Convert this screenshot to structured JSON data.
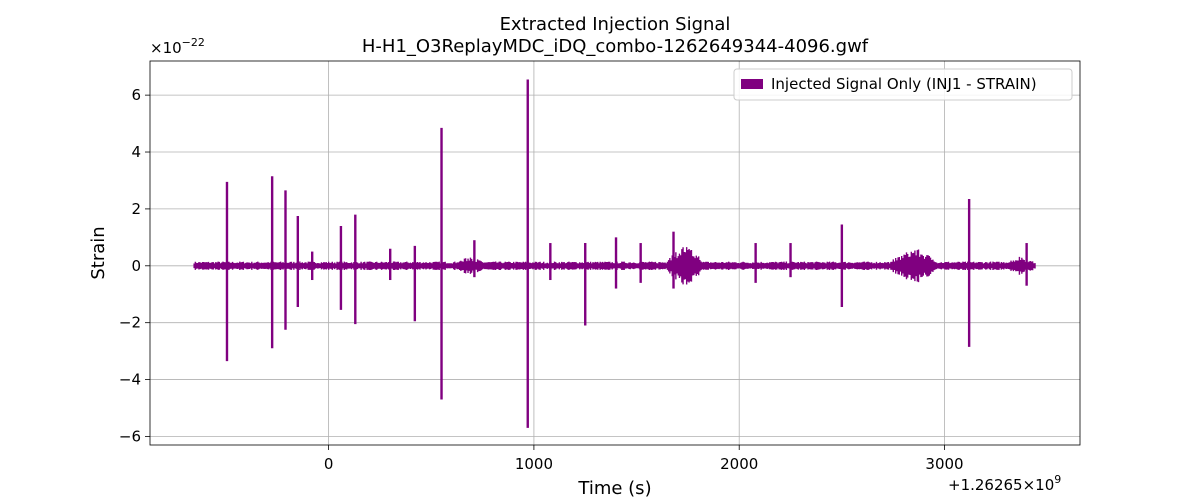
{
  "chart_data": {
    "type": "line",
    "title": "Extracted Injection Signal",
    "subtitle": "H-H1_O3ReplayMDC_iDQ_combo-1262649344-4096.gwf",
    "xlabel": "Time (s)",
    "ylabel": "Strain",
    "x_offset_label": "+1.26265×10",
    "x_offset_exponent": "9",
    "y_scale_label": "×10",
    "y_scale_exponent": "−22",
    "xlim": [
      -870,
      3660
    ],
    "ylim": [
      -6.3,
      7.2
    ],
    "x_ticks": [
      0,
      1000,
      2000,
      3000
    ],
    "x_tick_labels": [
      "0",
      "1000",
      "2000",
      "3000"
    ],
    "y_ticks": [
      -6,
      -4,
      -2,
      0,
      2,
      4,
      6
    ],
    "y_tick_labels": [
      "−6",
      "−4",
      "−2",
      "0",
      "2",
      "4",
      "6"
    ],
    "grid": true,
    "legend_position": "top-right",
    "color": "#800080",
    "series": [
      {
        "name": "Injected Signal Only (INJ1 - STRAIN)",
        "x_range": [
          -655,
          3441
        ],
        "baseline_amplitude": 0.15,
        "spikes": [
          {
            "x": -495,
            "max": 2.95,
            "min": -3.35
          },
          {
            "x": -275,
            "max": 3.15,
            "min": -2.9
          },
          {
            "x": -210,
            "max": 2.65,
            "min": -2.25
          },
          {
            "x": -150,
            "max": 1.75,
            "min": -1.45
          },
          {
            "x": -80,
            "max": 0.5,
            "min": -0.5
          },
          {
            "x": 60,
            "max": 1.4,
            "min": -1.55
          },
          {
            "x": 130,
            "max": 1.8,
            "min": -2.05
          },
          {
            "x": 300,
            "max": 0.6,
            "min": -0.5
          },
          {
            "x": 420,
            "max": 0.7,
            "min": -1.95
          },
          {
            "x": 550,
            "max": 4.85,
            "min": -4.7
          },
          {
            "x": 710,
            "max": 0.9,
            "min": -0.4
          },
          {
            "x": 970,
            "max": 6.55,
            "min": -5.7
          },
          {
            "x": 1080,
            "max": 0.8,
            "min": -0.5
          },
          {
            "x": 1250,
            "max": 0.8,
            "min": -2.1
          },
          {
            "x": 1400,
            "max": 1.0,
            "min": -0.8
          },
          {
            "x": 1520,
            "max": 0.8,
            "min": -0.6
          },
          {
            "x": 1680,
            "max": 1.2,
            "min": -0.8
          },
          {
            "x": 2080,
            "max": 0.8,
            "min": -0.6
          },
          {
            "x": 2250,
            "max": 0.8,
            "min": -0.4
          },
          {
            "x": 2500,
            "max": 1.45,
            "min": -1.45
          },
          {
            "x": 3120,
            "max": 2.35,
            "min": -2.85
          },
          {
            "x": 3400,
            "max": 0.8,
            "min": -0.7
          }
        ],
        "bursts": [
          {
            "x_start": 620,
            "x_end": 760,
            "amplitude": 0.35
          },
          {
            "x_start": 1650,
            "x_end": 1820,
            "amplitude": 0.75
          },
          {
            "x_start": 2750,
            "x_end": 2960,
            "amplitude": 0.65
          },
          {
            "x_start": 3300,
            "x_end": 3441,
            "amplitude": 0.35
          }
        ]
      }
    ]
  }
}
